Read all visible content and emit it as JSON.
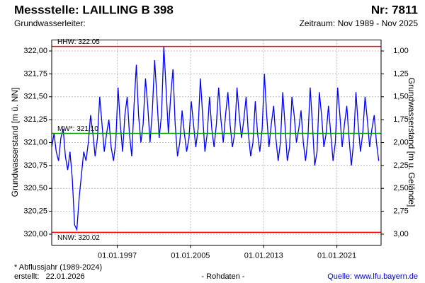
{
  "chart_data": {
    "type": "line",
    "title": "Messstelle: LAILLING B 398",
    "number": "Nr: 7811",
    "subtitle": "Grundwasserleiter:",
    "period": "Zeitraum: Nov 1989 - Nov 2025",
    "ylabel": "Grundwasserstand [m ü. NN]",
    "y2label": "Grundwasserstand [m u. Gelände]",
    "footnote": "* Abflussjahr (1989-2024)",
    "created": "erstellt:   22.01.2026",
    "data_note": "- Rohdaten -",
    "source": "Quelle: www.lfu.bayern.de",
    "xlim": [
      "1989-11-01",
      "2025-11-01"
    ],
    "xticks": [
      {
        "value": "1997-01-01",
        "label": "01.01.1997"
      },
      {
        "value": "2005-01-01",
        "label": "01.01.2005"
      },
      {
        "value": "2013-01-01",
        "label": "01.01.2013"
      },
      {
        "value": "2021-01-01",
        "label": "01.01.2021"
      }
    ],
    "ylim": [
      319.88,
      322.12
    ],
    "yticks": [
      {
        "value": 320,
        "label": "320,00"
      },
      {
        "value": 320.25,
        "label": "320,25"
      },
      {
        "value": 320.5,
        "label": "320,50"
      },
      {
        "value": 320.75,
        "label": "320,75"
      },
      {
        "value": 321,
        "label": "321,00"
      },
      {
        "value": 321.25,
        "label": "321,25"
      },
      {
        "value": 321.5,
        "label": "321,50"
      },
      {
        "value": 321.75,
        "label": "321,75"
      },
      {
        "value": 322,
        "label": "322,00"
      }
    ],
    "y2lim": [
      3.12,
      0.88
    ],
    "y2ticks": [
      {
        "value": 1,
        "label": "1,00"
      },
      {
        "value": 1.25,
        "label": "1,25"
      },
      {
        "value": 1.5,
        "label": "1,50"
      },
      {
        "value": 1.75,
        "label": "1,75"
      },
      {
        "value": 2,
        "label": "2,00"
      },
      {
        "value": 2.25,
        "label": "2,25"
      },
      {
        "value": 2.5,
        "label": "2,50"
      },
      {
        "value": 2.75,
        "label": "2,75"
      },
      {
        "value": 3,
        "label": "3,00"
      }
    ],
    "grid": true,
    "reference_lines": [
      {
        "label": "HHW: 322.05",
        "value": 322.05,
        "color": "#ff0000"
      },
      {
        "label": "MW*: 321.10",
        "value": 321.1,
        "color": "#00a000"
      },
      {
        "label": "NNW: 320.02",
        "value": 320.02,
        "color": "#ff0000"
      }
    ],
    "x": [
      "1989-11",
      "1990-02",
      "1990-05",
      "1990-08",
      "1990-11",
      "1991-02",
      "1991-05",
      "1991-08",
      "1991-11",
      "1992-02",
      "1992-05",
      "1992-08",
      "1992-11",
      "1993-02",
      "1993-05",
      "1993-08",
      "1993-11",
      "1994-02",
      "1994-05",
      "1994-08",
      "1994-11",
      "1995-02",
      "1995-05",
      "1995-08",
      "1995-11",
      "1996-02",
      "1996-05",
      "1996-08",
      "1996-11",
      "1997-02",
      "1997-05",
      "1997-08",
      "1997-11",
      "1998-02",
      "1998-05",
      "1998-08",
      "1998-11",
      "1999-02",
      "1999-05",
      "1999-08",
      "1999-11",
      "2000-02",
      "2000-05",
      "2000-08",
      "2000-11",
      "2001-02",
      "2001-05",
      "2001-08",
      "2001-11",
      "2002-02",
      "2002-05",
      "2002-08",
      "2002-11",
      "2003-02",
      "2003-05",
      "2003-08",
      "2003-11",
      "2004-02",
      "2004-05",
      "2004-08",
      "2004-11",
      "2005-02",
      "2005-05",
      "2005-08",
      "2005-11",
      "2006-02",
      "2006-05",
      "2006-08",
      "2006-11",
      "2007-02",
      "2007-05",
      "2007-08",
      "2007-11",
      "2008-02",
      "2008-05",
      "2008-08",
      "2008-11",
      "2009-02",
      "2009-05",
      "2009-08",
      "2009-11",
      "2010-02",
      "2010-05",
      "2010-08",
      "2010-11",
      "2011-02",
      "2011-05",
      "2011-08",
      "2011-11",
      "2012-02",
      "2012-05",
      "2012-08",
      "2012-11",
      "2013-02",
      "2013-05",
      "2013-08",
      "2013-11",
      "2014-02",
      "2014-05",
      "2014-08",
      "2014-11",
      "2015-02",
      "2015-05",
      "2015-08",
      "2015-11",
      "2016-02",
      "2016-05",
      "2016-08",
      "2016-11",
      "2017-02",
      "2017-05",
      "2017-08",
      "2017-11",
      "2018-02",
      "2018-05",
      "2018-08",
      "2018-11",
      "2019-02",
      "2019-05",
      "2019-08",
      "2019-11",
      "2020-02",
      "2020-05",
      "2020-08",
      "2020-11",
      "2021-02",
      "2021-05",
      "2021-08",
      "2021-11",
      "2022-02",
      "2022-05",
      "2022-08",
      "2022-11",
      "2023-02",
      "2023-05",
      "2023-08",
      "2023-11",
      "2024-02",
      "2024-05",
      "2024-08",
      "2024-11",
      "2025-02",
      "2025-05",
      "2025-08"
    ],
    "series": [
      {
        "name": "Grundwasserstand",
        "color": "#0000ff",
        "values": [
          320.95,
          321.1,
          320.9,
          320.8,
          321.05,
          321.15,
          320.85,
          320.7,
          320.9,
          320.6,
          320.1,
          320.05,
          320.4,
          320.65,
          320.9,
          320.8,
          321.0,
          321.3,
          321.1,
          320.85,
          321.05,
          321.5,
          321.2,
          320.9,
          321.1,
          321.25,
          320.95,
          320.8,
          321.0,
          321.6,
          321.2,
          320.9,
          321.3,
          321.5,
          321.1,
          320.85,
          321.4,
          321.85,
          321.3,
          321.0,
          321.2,
          321.7,
          321.4,
          321.0,
          321.35,
          321.9,
          321.5,
          321.05,
          321.3,
          322.05,
          321.6,
          321.1,
          321.5,
          321.8,
          321.2,
          320.85,
          321.0,
          321.35,
          321.1,
          320.9,
          321.05,
          321.45,
          321.2,
          320.95,
          321.15,
          321.7,
          321.3,
          320.9,
          321.1,
          321.5,
          321.15,
          320.95,
          321.2,
          321.6,
          321.25,
          321.0,
          321.3,
          321.55,
          321.2,
          320.95,
          321.1,
          321.6,
          321.3,
          321.05,
          321.25,
          321.5,
          321.1,
          320.85,
          321.0,
          321.45,
          321.1,
          320.9,
          321.15,
          321.75,
          321.3,
          320.95,
          321.2,
          321.4,
          321.05,
          320.8,
          321.0,
          321.55,
          321.2,
          320.8,
          320.95,
          321.5,
          321.3,
          321.0,
          321.15,
          321.35,
          321.0,
          320.8,
          321.05,
          321.6,
          321.2,
          320.75,
          320.9,
          321.55,
          321.3,
          320.95,
          321.1,
          321.4,
          321.1,
          320.8,
          321.0,
          321.6,
          321.3,
          320.95,
          321.2,
          321.4,
          321.05,
          320.75,
          321.0,
          321.55,
          321.2,
          320.9,
          321.1,
          321.5,
          321.25,
          320.95,
          321.15,
          321.3,
          321.0,
          320.8
        ]
      }
    ]
  }
}
